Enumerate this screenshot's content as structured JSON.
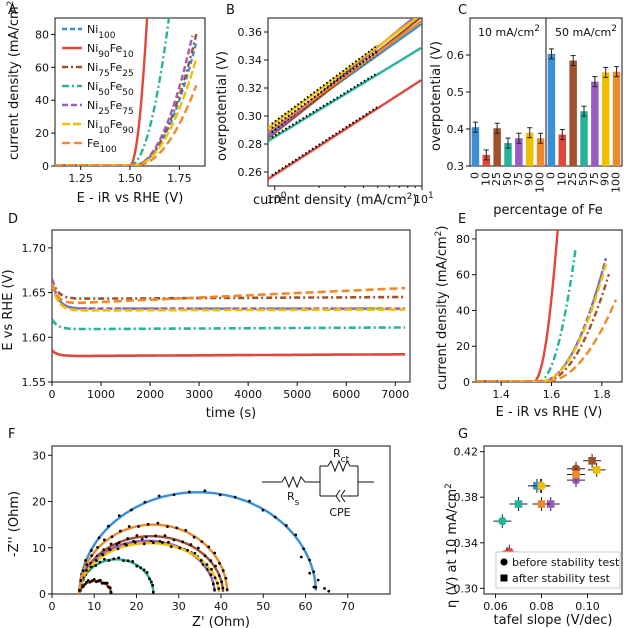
{
  "chart_data": [
    {
      "panel": "A",
      "type": "line",
      "xlabel": "E - iR vs RHE (V)",
      "ylabel": "current density (mA/cm2)",
      "xlim": [
        1.12,
        1.88
      ],
      "ylim": [
        0,
        90
      ],
      "xticks": [
        "1.25",
        "1.50",
        "1.75"
      ],
      "yticks": [
        "0",
        "20",
        "40",
        "60",
        "80"
      ],
      "legend": [
        {
          "name": "Ni100",
          "base": "Ni",
          "sub": "100"
        },
        {
          "name": "Ni90Fe10",
          "base": "Ni",
          "sub": "90",
          "base2": "Fe",
          "sub2": "10"
        },
        {
          "name": "Ni75Fe25",
          "base": "Ni",
          "sub": "75",
          "base2": "Fe",
          "sub2": "25"
        },
        {
          "name": "Ni50Fe50",
          "base": "Ni",
          "sub": "50",
          "base2": "Fe",
          "sub2": "50"
        },
        {
          "name": "Ni25Fe75",
          "base": "Ni",
          "sub": "25",
          "base2": "Fe",
          "sub2": "75"
        },
        {
          "name": "Ni10Fe90",
          "base": "Ni",
          "sub": "10",
          "base2": "Fe",
          "sub2": "90"
        },
        {
          "name": "Fe100",
          "base": "Fe",
          "sub": "100"
        }
      ],
      "series": [
        {
          "name": "Ni100",
          "onset": 1.52,
          "end": 1.84,
          "k": 7.5,
          "p": 2.0
        },
        {
          "name": "Ni90Fe10",
          "onset": 1.5,
          "end": 1.62,
          "k": 120,
          "p": 2.0
        },
        {
          "name": "Ni75Fe25",
          "onset": 1.52,
          "end": 1.84,
          "k": 8.0,
          "p": 2.0
        },
        {
          "name": "Ni50Fe50",
          "onset": 1.5,
          "end": 1.8,
          "k": 23,
          "p": 2.0
        },
        {
          "name": "Ni25Fe75",
          "onset": 1.52,
          "end": 1.82,
          "k": 9.0,
          "p": 2.0
        },
        {
          "name": "Ni10Fe90",
          "onset": 1.52,
          "end": 1.84,
          "k": 6.5,
          "p": 2.0
        },
        {
          "name": "Fe100",
          "onset": 1.53,
          "end": 1.84,
          "k": 5.2,
          "p": 2.0
        }
      ]
    },
    {
      "panel": "B",
      "type": "line",
      "xlabel": "current density (mA/cm2)",
      "ylabel": "overpotential (V)",
      "xscale": "log",
      "xlim": [
        0.9,
        10
      ],
      "ylim": [
        0.25,
        0.37
      ],
      "xticks": [
        "10^0",
        "10^1"
      ],
      "yticks": [
        "0.26",
        "0.28",
        "0.30",
        "0.32",
        "0.34",
        "0.36"
      ],
      "series": [
        {
          "name": "Ni100",
          "eta_at_1": 0.291,
          "slope_per_decade": 0.075
        },
        {
          "name": "Ni90Fe10",
          "eta_at_1": 0.258,
          "slope_per_decade": 0.068
        },
        {
          "name": "Ni75Fe25",
          "eta_at_1": 0.288,
          "slope_per_decade": 0.083
        },
        {
          "name": "Ni50Fe50",
          "eta_at_1": 0.285,
          "slope_per_decade": 0.064
        },
        {
          "name": "Ni25Fe75",
          "eta_at_1": 0.289,
          "slope_per_decade": 0.086
        },
        {
          "name": "Ni10Fe90",
          "eta_at_1": 0.295,
          "slope_per_decade": 0.078
        },
        {
          "name": "Fe100",
          "eta_at_1": 0.292,
          "slope_per_decade": 0.076
        }
      ]
    },
    {
      "panel": "C",
      "type": "bar",
      "xlabel": "percentage of Fe",
      "ylabel": "overpotential (V)",
      "ylim": [
        0.3,
        0.7
      ],
      "yticks": [
        "0.3",
        "0.4",
        "0.5",
        "0.6"
      ],
      "group_labels": [
        "10 mA/cm2",
        "50 mA/cm2"
      ],
      "categories": [
        "0",
        "10",
        "25",
        "50",
        "75",
        "90",
        "100"
      ],
      "groups": [
        {
          "name": "10 mA/cm2",
          "values": [
            0.405,
            0.33,
            0.402,
            0.362,
            0.375,
            0.39,
            0.375
          ]
        },
        {
          "name": "50 mA/cm2",
          "values": [
            0.603,
            0.385,
            0.585,
            0.448,
            0.528,
            0.553,
            0.555
          ]
        }
      ]
    },
    {
      "panel": "D",
      "type": "line",
      "xlabel": "time (s)",
      "ylabel": "E vs RHE (V)",
      "xlim": [
        0,
        7300
      ],
      "ylim": [
        1.55,
        1.72
      ],
      "xticks": [
        "0",
        "1000",
        "2000",
        "3000",
        "4000",
        "5000",
        "6000",
        "7000"
      ],
      "yticks": [
        "1.55",
        "1.60",
        "1.65",
        "1.70"
      ],
      "series": [
        {
          "name": "Ni100",
          "start": 1.665,
          "steady": 1.632,
          "end": 1.632
        },
        {
          "name": "Ni90Fe10",
          "start": 1.585,
          "steady": 1.579,
          "end": 1.581
        },
        {
          "name": "Ni75Fe25",
          "start": 1.665,
          "steady": 1.643,
          "end": 1.645
        },
        {
          "name": "Ni50Fe50",
          "start": 1.62,
          "steady": 1.609,
          "end": 1.611
        },
        {
          "name": "Ni25Fe75",
          "start": 1.665,
          "steady": 1.632,
          "end": 1.632
        },
        {
          "name": "Ni10Fe90",
          "start": 1.66,
          "steady": 1.63,
          "end": 1.631
        },
        {
          "name": "Fe100",
          "start": 1.66,
          "steady": 1.637,
          "end": 1.655
        }
      ]
    },
    {
      "panel": "E",
      "type": "line",
      "xlabel": "E - iR vs RHE (V)",
      "ylabel": "current density (mA/cm2)",
      "xlim": [
        1.3,
        1.88
      ],
      "ylim": [
        0,
        85
      ],
      "xticks": [
        "1.4",
        "1.6",
        "1.8"
      ],
      "yticks": [
        "0",
        "20",
        "40",
        "60",
        "80"
      ],
      "series": [
        {
          "name": "Ni100",
          "onset": 1.56,
          "end": 1.82,
          "k": 10.5,
          "p": 2.0
        },
        {
          "name": "Ni90Fe10",
          "onset": 1.53,
          "end": 1.63,
          "k": 95,
          "p": 2.0
        },
        {
          "name": "Ni75Fe25",
          "onset": 1.57,
          "end": 1.83,
          "k": 9.0,
          "p": 2.0
        },
        {
          "name": "Ni50Fe50",
          "onset": 1.55,
          "end": 1.7,
          "k": 35,
          "p": 2.0
        },
        {
          "name": "Ni25Fe75",
          "onset": 1.56,
          "end": 1.82,
          "k": 10.5,
          "p": 2.0
        },
        {
          "name": "Ni10Fe90",
          "onset": 1.56,
          "end": 1.82,
          "k": 10.0,
          "p": 2.0
        },
        {
          "name": "Fe100",
          "onset": 1.58,
          "end": 1.86,
          "k": 6.0,
          "p": 2.0
        }
      ]
    },
    {
      "panel": "F",
      "type": "scatter",
      "xlabel": "Z' (Ohm)",
      "ylabel": "-Z'' (Ohm)",
      "xlim": [
        0,
        80
      ],
      "ylim": [
        0,
        32
      ],
      "xticks": [
        "0",
        "10",
        "20",
        "30",
        "40",
        "50",
        "60",
        "70"
      ],
      "yticks": [
        "0",
        "10",
        "20",
        "30"
      ],
      "circuit_labels": {
        "rs": "Rs",
        "rct": "Rct",
        "cpe": "CPE"
      },
      "series": [
        {
          "name": "Ni100",
          "rs": 6.5,
          "rct": 56,
          "peak": 22
        },
        {
          "name": "Ni90Fe10",
          "rs": 6.5,
          "rct": 7.5,
          "peak": 2.8
        },
        {
          "name": "Ni75Fe25",
          "rs": 6.5,
          "rct": 34,
          "peak": 12.5
        },
        {
          "name": "Ni50Fe50",
          "rs": 6.5,
          "rct": 17.5,
          "peak": 7.5
        },
        {
          "name": "Ni25Fe75",
          "rs": 6.5,
          "rct": 32,
          "peak": 11.5
        },
        {
          "name": "Ni10Fe90",
          "rs": 6.5,
          "rct": 33,
          "peak": 11
        },
        {
          "name": "Fe100",
          "rs": 6.5,
          "rct": 35,
          "peak": 15
        }
      ]
    },
    {
      "panel": "G",
      "type": "scatter",
      "xlabel": "tafel slope (V/dec)",
      "ylabel": "η (V) at 10 mA/cm2",
      "xlim": [
        0.055,
        0.115
      ],
      "ylim": [
        0.295,
        0.425
      ],
      "xticks": [
        "0.06",
        "0.08",
        "0.10"
      ],
      "yticks": [
        "0.30",
        "0.34",
        "0.38",
        "0.42"
      ],
      "legend": [
        "before stability test",
        "after stability test"
      ],
      "points": [
        {
          "name": "Ni100",
          "before": [
            0.0795,
            0.39
          ],
          "after": [
            0.078,
            0.39
          ]
        },
        {
          "name": "Ni90Fe10",
          "before": [
            0.066,
            0.332
          ],
          "after": [
            0.065,
            0.33
          ]
        },
        {
          "name": "Ni75Fe25",
          "before": [
            0.095,
            0.405
          ],
          "after": [
            0.102,
            0.412
          ]
        },
        {
          "name": "Ni50Fe50",
          "before": [
            0.063,
            0.359
          ],
          "after": [
            0.07,
            0.374
          ]
        },
        {
          "name": "Ni25Fe75",
          "before": [
            0.095,
            0.395
          ],
          "after": [
            0.084,
            0.374
          ]
        },
        {
          "name": "Ni10Fe90",
          "before": [
            0.08,
            0.39
          ],
          "after": [
            0.104,
            0.404
          ]
        },
        {
          "name": "Fe100",
          "before": [
            0.095,
            0.4
          ],
          "after": [
            0.08,
            0.374
          ]
        }
      ]
    }
  ],
  "colors": {
    "Ni100": "#3a8fd9",
    "Ni90Fe10": "#e0483a",
    "Ni75Fe25": "#a0522d",
    "Ni50Fe50": "#26b39a",
    "Ni25Fe75": "#9a5cc0",
    "Ni10Fe90": "#f0c000",
    "Fe100": "#ef8a2a"
  },
  "dashes": {
    "Ni100": "5,3",
    "Ni90Fe10": "",
    "Ni75Fe25": "6,3,2,3",
    "Ni50Fe50": "7,3,2,3",
    "Ni25Fe75": "6,3",
    "Ni10Fe90": "8,3",
    "Fe100": "8,4"
  }
}
